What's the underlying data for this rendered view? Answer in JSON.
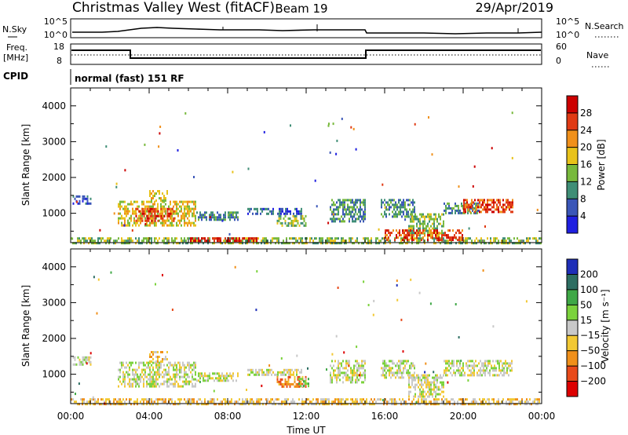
{
  "header": {
    "station": "Christmas Valley West (fitACF)",
    "beam": "Beam 19",
    "date": "29/Apr/2019"
  },
  "top_panels": {
    "nsky_label": "N.Sky",
    "nsearch_label": "N.Search",
    "noise_scale_top": "10^5",
    "noise_scale_bottom": "10^0",
    "freq_label": "Freq.",
    "freq_unit": "[MHz]",
    "freq_ticks": [
      "18",
      "8"
    ],
    "nave_label": "Nave",
    "nave_ticks": [
      "60",
      "0"
    ],
    "cpid_label": "CPID",
    "cpid_value": "normal (fast) 151 RF"
  },
  "chart_data": [
    {
      "type": "heatmap",
      "title": "",
      "xlabel": "Time UT",
      "ylabel": "Slant Range [km]",
      "x_ticks": [
        "00:00",
        "04:00",
        "08:00",
        "12:00",
        "16:00",
        "20:00",
        "00:00"
      ],
      "y_ticks": [
        "1000",
        "2000",
        "3000",
        "4000"
      ],
      "xlim_hours": [
        0,
        24
      ],
      "ylim_km": [
        180,
        4500
      ],
      "colorbar": {
        "label": "Power [dB]",
        "ticks": [
          "4",
          "8",
          "12",
          "16",
          "20",
          "24",
          "28"
        ],
        "colors": [
          "#1f1fe0",
          "#3a56b8",
          "#3f8e76",
          "#78b93c",
          "#e8c21a",
          "#f0901a",
          "#e03a14",
          "#cc0000"
        ]
      },
      "regions": [
        {
          "t0": 0.1,
          "t1": 1.0,
          "r0": 1250,
          "r1": 1500,
          "level": 1
        },
        {
          "t0": 2.4,
          "t1": 6.4,
          "r0": 650,
          "r1": 1350,
          "level": 4
        },
        {
          "t0": 3.3,
          "t1": 5.3,
          "r0": 800,
          "r1": 1150,
          "level": 6
        },
        {
          "t0": 4.0,
          "t1": 4.9,
          "r0": 1350,
          "r1": 1650,
          "level": 4
        },
        {
          "t0": 6.4,
          "t1": 8.5,
          "r0": 800,
          "r1": 1050,
          "level": 2
        },
        {
          "t0": 9.0,
          "t1": 11.8,
          "r0": 1000,
          "r1": 1150,
          "level": 1
        },
        {
          "t0": 10.5,
          "t1": 12.0,
          "r0": 650,
          "r1": 950,
          "level": 3
        },
        {
          "t0": 13.2,
          "t1": 15.0,
          "r0": 800,
          "r1": 1400,
          "level": 2
        },
        {
          "t0": 15.8,
          "t1": 17.5,
          "r0": 900,
          "r1": 1400,
          "level": 2
        },
        {
          "t0": 17.2,
          "t1": 19.0,
          "r0": 350,
          "r1": 1000,
          "level": 3
        },
        {
          "t0": 19.0,
          "t1": 20.8,
          "r0": 1000,
          "r1": 1300,
          "level": 2
        },
        {
          "t0": 20.0,
          "t1": 22.5,
          "r0": 1050,
          "r1": 1400,
          "level": 6
        },
        {
          "t0": 0.0,
          "t1": 24.0,
          "r0": 180,
          "r1": 330,
          "level": 3
        },
        {
          "t0": 6.0,
          "t1": 9.5,
          "r0": 250,
          "r1": 330,
          "level": 7
        },
        {
          "t0": 16.0,
          "t1": 20.0,
          "r0": 280,
          "r1": 550,
          "level": 6
        }
      ]
    },
    {
      "type": "heatmap",
      "title": "",
      "xlabel": "Time UT",
      "ylabel": "Slant Range [km]",
      "x_ticks": [
        "00:00",
        "04:00",
        "08:00",
        "12:00",
        "16:00",
        "20:00",
        "00:00"
      ],
      "y_ticks": [
        "1000",
        "2000",
        "3000",
        "4000"
      ],
      "xlim_hours": [
        0,
        24
      ],
      "ylim_km": [
        180,
        4500
      ],
      "colorbar": {
        "label": "Velocity [m s⁻¹]",
        "ticks": [
          "200",
          "100",
          "50",
          "15",
          "−15",
          "−50",
          "−100",
          "−200"
        ],
        "colors": [
          "#1f2fb8",
          "#2d6e62",
          "#3fa846",
          "#7bd23c",
          "#c8c8c8",
          "#f2c833",
          "#f0901a",
          "#e84a1a",
          "#dd0000"
        ]
      },
      "regions": [
        {
          "t0": 0.1,
          "t1": 1.0,
          "r0": 1250,
          "r1": 1500,
          "level": 4
        },
        {
          "t0": 2.4,
          "t1": 6.4,
          "r0": 650,
          "r1": 1350,
          "level": 4
        },
        {
          "t0": 4.0,
          "t1": 4.9,
          "r0": 1350,
          "r1": 1650,
          "level": 5
        },
        {
          "t0": 6.4,
          "t1": 8.5,
          "r0": 800,
          "r1": 1050,
          "level": 4
        },
        {
          "t0": 9.0,
          "t1": 11.8,
          "r0": 1000,
          "r1": 1150,
          "level": 4
        },
        {
          "t0": 10.5,
          "t1": 12.0,
          "r0": 650,
          "r1": 950,
          "level": 6
        },
        {
          "t0": 11.6,
          "t1": 12.2,
          "r0": 650,
          "r1": 900,
          "level": 3
        },
        {
          "t0": 13.2,
          "t1": 15.0,
          "r0": 800,
          "r1": 1400,
          "level": 4
        },
        {
          "t0": 15.8,
          "t1": 17.5,
          "r0": 900,
          "r1": 1400,
          "level": 4
        },
        {
          "t0": 17.2,
          "t1": 19.0,
          "r0": 350,
          "r1": 1000,
          "level": 4
        },
        {
          "t0": 19.0,
          "t1": 22.5,
          "r0": 1000,
          "r1": 1400,
          "level": 4
        },
        {
          "t0": 0.0,
          "t1": 24.0,
          "r0": 180,
          "r1": 330,
          "level": 5
        }
      ]
    }
  ]
}
